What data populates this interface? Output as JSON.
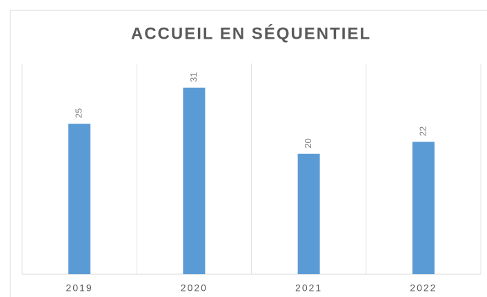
{
  "chart_data": {
    "type": "bar",
    "title": "ACCUEIL EN SÉQUENTIEL",
    "categories": [
      "2019",
      "2020",
      "2021",
      "2022"
    ],
    "values": [
      25,
      31,
      20,
      22
    ],
    "color": "#5b9bd5",
    "ylim": [
      0,
      35
    ],
    "data_labels": true,
    "grid": "vertical"
  }
}
